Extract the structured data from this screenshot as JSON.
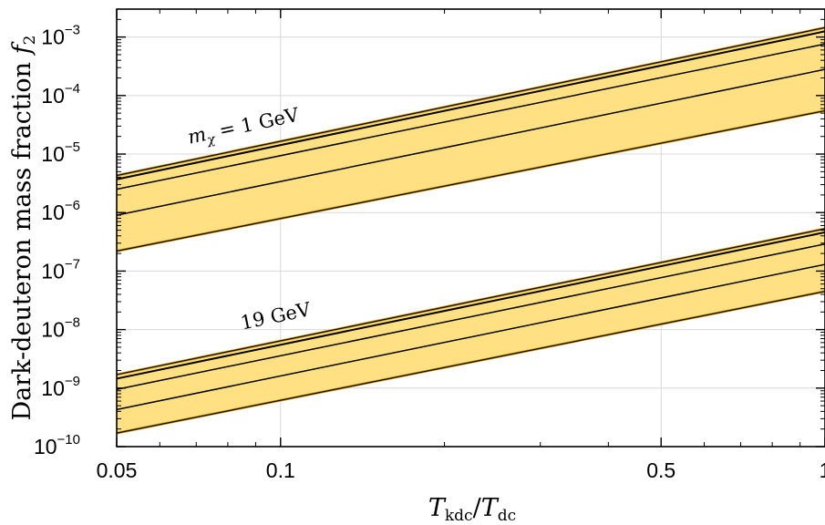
{
  "chart_data": {
    "type": "area",
    "xlabel": "T_kdc/T_dc",
    "ylabel": "Dark-deuteron mass fraction f_2",
    "xscale": "log",
    "yscale": "log",
    "xlim": [
      0.05,
      1
    ],
    "ylim": [
      1e-10,
      0.003
    ],
    "grid": true,
    "x_ticks": [
      {
        "value": 0.05,
        "label": "0.05"
      },
      {
        "value": 0.1,
        "label": "0.1"
      },
      {
        "value": 0.5,
        "label": "0.5"
      },
      {
        "value": 1,
        "label": "1"
      }
    ],
    "y_ticks": [
      {
        "value": 1e-10,
        "base": "10",
        "exp": "−10"
      },
      {
        "value": 1e-09,
        "base": "10",
        "exp": "−9"
      },
      {
        "value": 1e-08,
        "base": "10",
        "exp": "−8"
      },
      {
        "value": 1e-07,
        "base": "10",
        "exp": "−7"
      },
      {
        "value": 1e-06,
        "base": "10",
        "exp": "−6"
      },
      {
        "value": 1e-05,
        "base": "10",
        "exp": "−5"
      },
      {
        "value": 0.0001,
        "base": "10",
        "exp": "−4"
      },
      {
        "value": 0.001,
        "base": "10",
        "exp": "−3"
      }
    ],
    "band_color": "#FFE082",
    "band_edge_color": "#C89200",
    "line_color": "#000000",
    "groups": [
      {
        "label_var": "m_χ",
        "label_text": " = 1 GeV",
        "label_at": {
          "x": 0.068,
          "y": 1.5e-05
        },
        "band_low": [
          {
            "x": 0.05,
            "y": 2.2e-07
          },
          {
            "x": 1,
            "y": 5.5e-05
          }
        ],
        "band_high": [
          {
            "x": 0.05,
            "y": 4.3e-06
          },
          {
            "x": 1,
            "y": 0.00145
          }
        ],
        "lines": [
          [
            {
              "x": 0.05,
              "y": 3.7e-06
            },
            {
              "x": 1,
              "y": 0.00125
            }
          ],
          [
            {
              "x": 0.05,
              "y": 2.5e-06
            },
            {
              "x": 1,
              "y": 0.00076
            }
          ],
          [
            {
              "x": 0.05,
              "y": 9e-07
            },
            {
              "x": 1,
              "y": 0.00028
            }
          ]
        ]
      },
      {
        "label_var": "",
        "label_text": "19 GeV",
        "label_at": {
          "x": 0.085,
          "y": 1e-08
        },
        "band_low": [
          {
            "x": 0.05,
            "y": 1.7e-10
          },
          {
            "x": 1,
            "y": 4.5e-08
          }
        ],
        "band_high": [
          {
            "x": 0.05,
            "y": 1.7e-09
          },
          {
            "x": 1,
            "y": 5.3e-07
          }
        ],
        "lines": [
          [
            {
              "x": 0.05,
              "y": 1.45e-09
            },
            {
              "x": 1,
              "y": 4.6e-07
            }
          ],
          [
            {
              "x": 0.05,
              "y": 9.5e-10
            },
            {
              "x": 1,
              "y": 2.9e-07
            }
          ],
          [
            {
              "x": 0.05,
              "y": 4.3e-10
            },
            {
              "x": 1,
              "y": 1.3e-07
            }
          ]
        ]
      }
    ]
  }
}
